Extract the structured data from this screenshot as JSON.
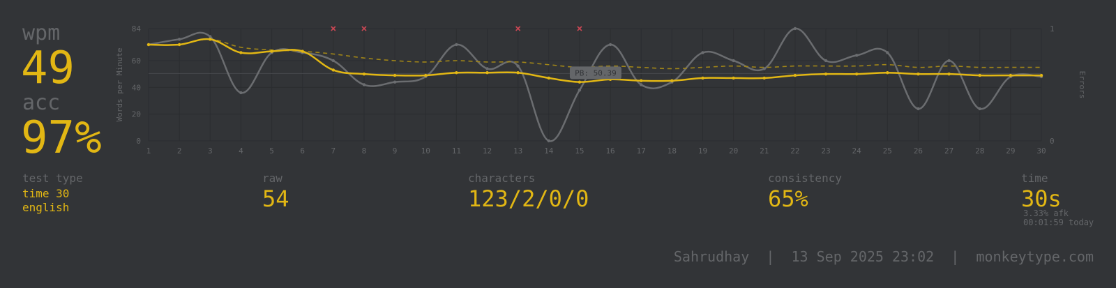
{
  "stats": {
    "wpm_label": "wpm",
    "wpm": "49",
    "acc_label": "acc",
    "acc": "97%"
  },
  "details": {
    "test_type_label": "test type",
    "test_type_line1": "time 30",
    "test_type_line2": "english",
    "raw_label": "raw",
    "raw": "54",
    "characters_label": "characters",
    "characters": "123/2/0/0",
    "consistency_label": "consistency",
    "consistency": "65%",
    "time_label": "time",
    "time": "30s",
    "afk": "3.33% afk",
    "today": "00:01:59 today"
  },
  "footer": {
    "user": "Sahrudhay",
    "separator": "|",
    "date": "13 Sep 2025 23:02",
    "site": "monkeytype.com"
  },
  "colors": {
    "background": "#323437",
    "main": "#e2b714",
    "sub": "#646669",
    "error": "#ca4754"
  },
  "chart_data": {
    "type": "line",
    "x": [
      1,
      2,
      3,
      4,
      5,
      6,
      7,
      8,
      9,
      10,
      11,
      12,
      13,
      14,
      15,
      16,
      17,
      18,
      19,
      20,
      21,
      22,
      23,
      24,
      25,
      26,
      27,
      28,
      29,
      30
    ],
    "ylabel": "Words per Minute",
    "y2label": "Errors",
    "ylim": [
      0,
      84
    ],
    "yticks": [
      0,
      20,
      40,
      60,
      84
    ],
    "y2lim": [
      0,
      1
    ],
    "y2ticks": [
      0,
      1
    ],
    "pb_label": "PB: 50.39",
    "pb_value": 50.39,
    "series": [
      {
        "kind": "wpm",
        "values": [
          72,
          72,
          76,
          66,
          67,
          67,
          53,
          50,
          49,
          49,
          51,
          51,
          51,
          47,
          44,
          46,
          45,
          45,
          47,
          47,
          47,
          49,
          50,
          50,
          51,
          50,
          50,
          49,
          49,
          49
        ]
      },
      {
        "kind": "raw",
        "values": [
          72,
          76,
          78,
          36,
          66,
          66,
          60,
          42,
          44,
          48,
          72,
          54,
          56,
          0,
          38,
          72,
          42,
          44,
          66,
          60,
          54,
          84,
          60,
          64,
          66,
          24,
          60,
          24,
          48,
          48
        ]
      },
      {
        "kind": "burst-avg",
        "style": "dashed",
        "values": [
          72,
          72,
          76,
          70,
          68,
          67,
          65,
          62,
          60,
          59,
          60,
          59,
          59,
          57,
          55,
          56,
          55,
          54,
          55,
          56,
          55,
          56,
          56,
          56,
          57,
          55,
          56,
          55,
          55,
          55
        ]
      }
    ],
    "errors_x": [
      7,
      8,
      13,
      15
    ],
    "grid": true
  }
}
